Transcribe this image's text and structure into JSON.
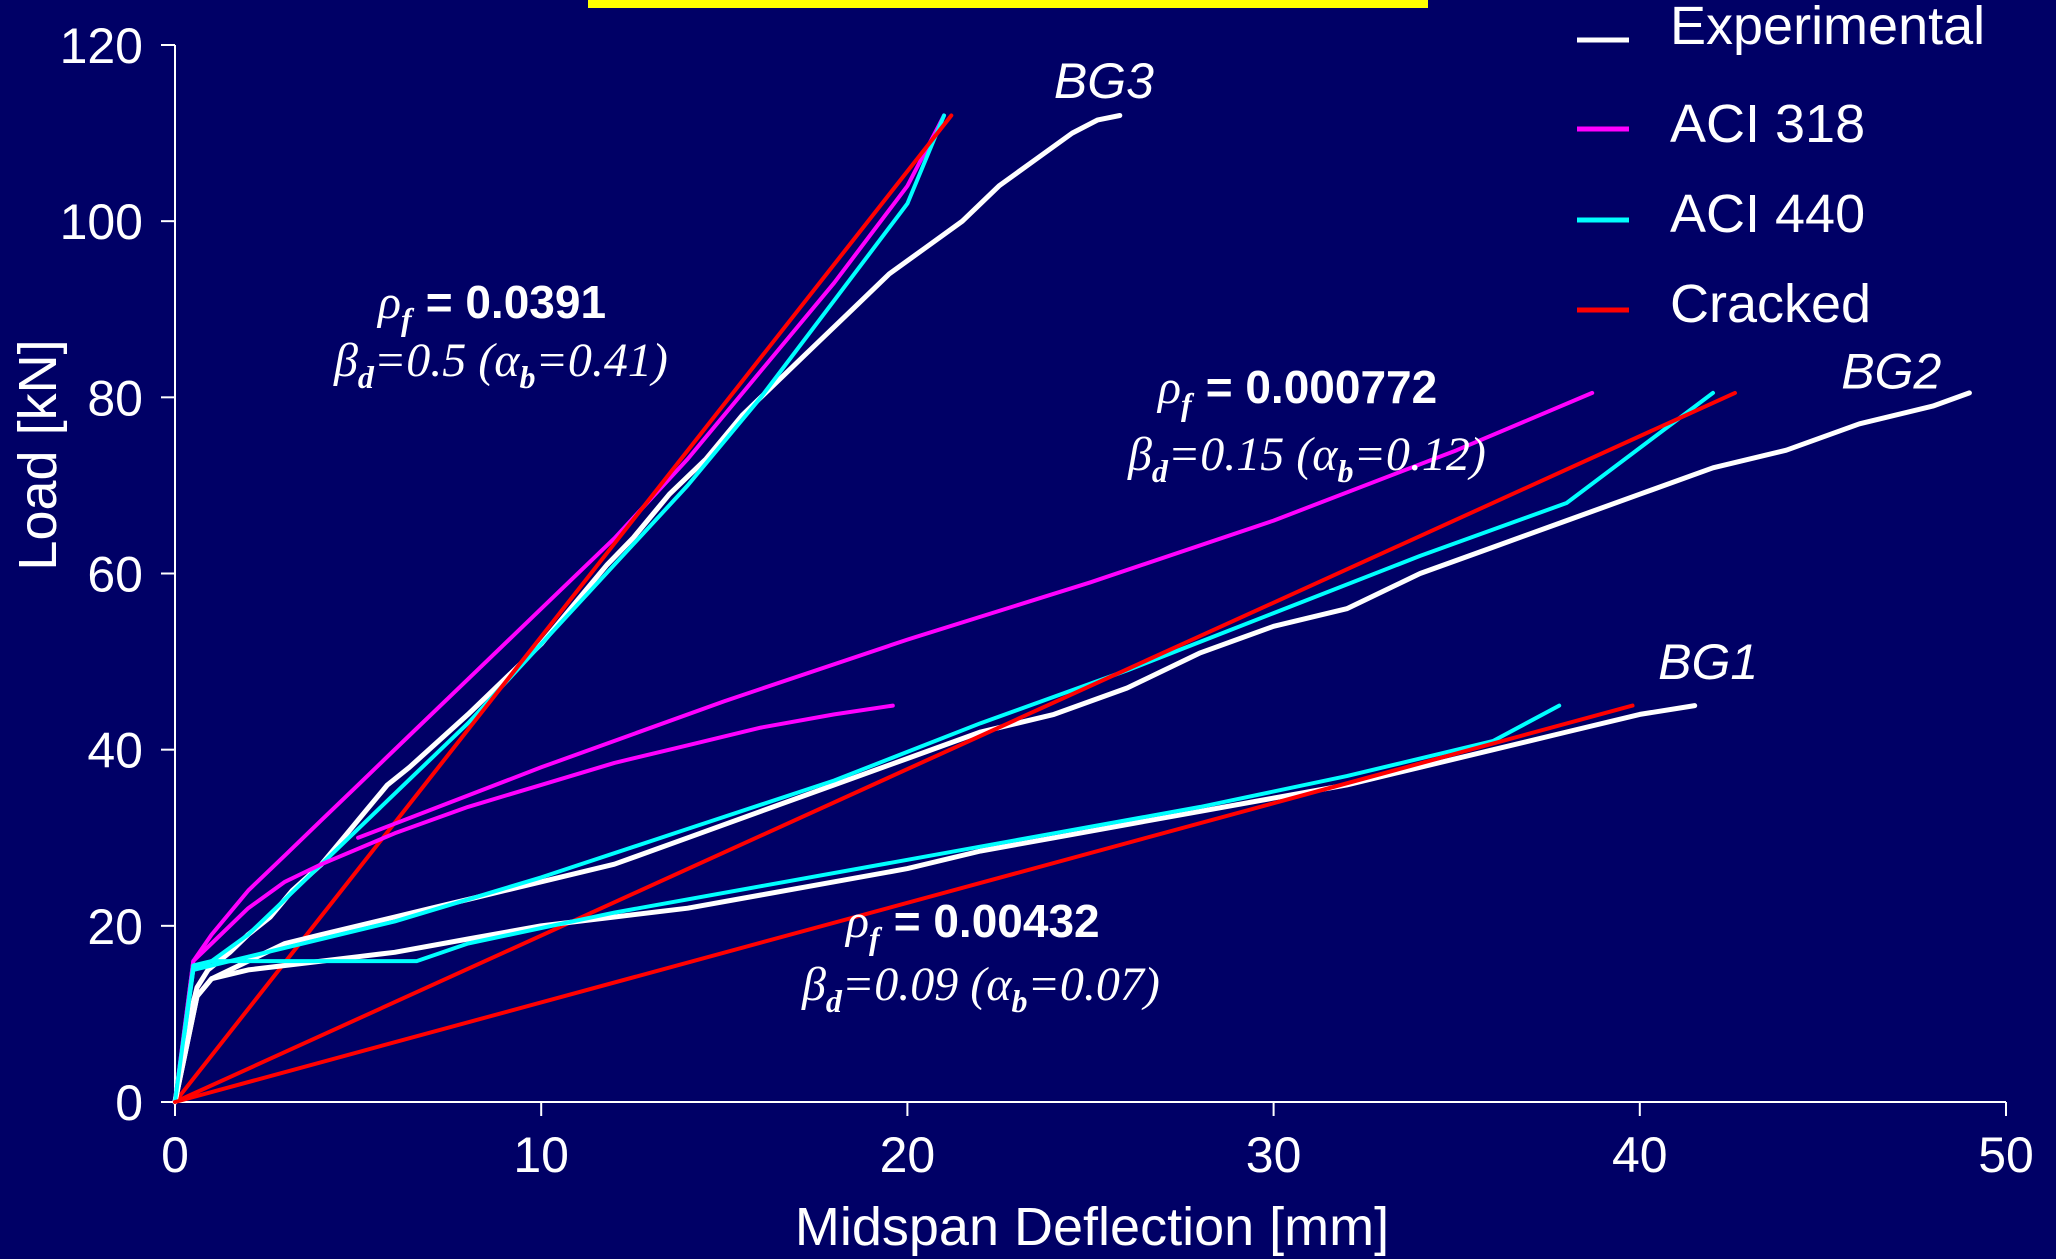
{
  "colors": {
    "background": "#000066",
    "title_bar": "#ffff00",
    "experimental": "#ffffff",
    "aci318": "#ff00ff",
    "aci440": "#00ffff",
    "cracked": "#ff0000"
  },
  "chart_data": {
    "type": "line",
    "xlabel": "Midspan Deflection [mm]",
    "ylabel": "Load [kN]",
    "xlim": [
      0,
      50
    ],
    "ylim": [
      0,
      120
    ],
    "xticks": [
      0,
      10,
      20,
      30,
      40,
      50
    ],
    "yticks": [
      0,
      20,
      40,
      60,
      80,
      100,
      120
    ],
    "grid": false,
    "legend_position": "top-right",
    "legend": [
      {
        "label": "Experimental",
        "color": "#ffffff"
      },
      {
        "label": "ACI 318",
        "color": "#ff00ff"
      },
      {
        "label": "ACI 440",
        "color": "#00ffff"
      },
      {
        "label": "Cracked",
        "color": "#ff0000"
      }
    ],
    "series": [
      {
        "specimen": "BG3",
        "kind": "experimental",
        "color": "#ffffff",
        "x": [
          0,
          0.3,
          0.6,
          0.9,
          1.5,
          2.0,
          2.6,
          3.2,
          4.0,
          4.6,
          5.2,
          5.8,
          6.4,
          7.2,
          8.0,
          9.0,
          10.0,
          11.0,
          11.8,
          12.5,
          13.5,
          14.5,
          15.5,
          16.5,
          17.5,
          18.5,
          19.5,
          20.5,
          21.5,
          22.5,
          23.5,
          24.5,
          25.2,
          25.8
        ],
        "y": [
          0,
          8,
          13,
          15,
          17,
          19,
          21,
          24,
          27,
          30,
          33,
          36,
          38,
          41,
          44,
          48,
          52,
          57,
          61,
          64,
          69,
          73,
          78,
          82,
          86,
          90,
          94,
          97,
          100,
          104,
          107,
          110,
          111.5,
          112
        ]
      },
      {
        "specimen": "BG3",
        "kind": "ACI 318",
        "color": "#ff00ff",
        "x": [
          0,
          0.5,
          1.0,
          2.0,
          3.0,
          4.0,
          5.0,
          6.5,
          8.0,
          10.0,
          12.0,
          14.0,
          16.0,
          18.0,
          20.0,
          21.0
        ],
        "y": [
          0,
          16,
          19,
          24,
          28,
          32,
          36,
          42,
          48,
          56,
          64,
          73,
          83,
          93,
          104,
          112
        ]
      },
      {
        "specimen": "BG3",
        "kind": "ACI 440",
        "color": "#00ffff",
        "x": [
          0,
          0.5,
          1.0,
          2.0,
          3.0,
          4.0,
          5.0,
          6.5,
          8.0,
          10.0,
          12.0,
          14.0,
          16.0,
          18.0,
          20.0,
          21.0
        ],
        "y": [
          0,
          15,
          16,
          19,
          23,
          27,
          31,
          37,
          43,
          52,
          61,
          70,
          80,
          91,
          102,
          112
        ]
      },
      {
        "specimen": "BG3",
        "kind": "Cracked",
        "color": "#ff0000",
        "x": [
          0,
          21.2
        ],
        "y": [
          0,
          112
        ]
      },
      {
        "specimen": "BG2",
        "kind": "experimental",
        "color": "#ffffff",
        "x": [
          0,
          0.3,
          0.6,
          1.0,
          2.0,
          3.0,
          4.0,
          5.0,
          6.0,
          7.0,
          8.0,
          9.0,
          10.0,
          12.0,
          14.0,
          16.0,
          18.0,
          20.0,
          22.0,
          24.0,
          26.0,
          28.0,
          30.0,
          32.0,
          34.0,
          36.0,
          38.0,
          40.0,
          42.0,
          44.0,
          46.0,
          48.0,
          49.0
        ],
        "y": [
          0,
          6,
          12,
          14,
          16,
          18,
          19,
          20,
          21,
          22,
          23,
          24,
          25,
          27,
          30,
          33,
          36,
          39,
          42,
          44,
          47,
          51,
          54,
          56,
          60,
          63,
          66,
          69,
          72,
          74,
          77,
          79,
          80.5
        ]
      },
      {
        "specimen": "BG2",
        "kind": "ACI 318",
        "color": "#ff00ff",
        "x": [
          0,
          0.5,
          1.0,
          2.0,
          3.0,
          4.0,
          6.0,
          8.0,
          10.0,
          12.0,
          14.0,
          16.0,
          18.0,
          19.6
        ],
        "y": [
          0,
          16,
          18,
          22,
          25,
          27,
          30.5,
          33.5,
          36,
          38.5,
          40.5,
          42.5,
          44,
          45
        ]
      },
      {
        "specimen": "BG2",
        "kind": "ACI 318 (second branch)",
        "color": "#ff00ff",
        "x": [
          5.0,
          10.0,
          15.0,
          20.0,
          25.0,
          30.0,
          35.0,
          38.7
        ],
        "y": [
          30,
          38,
          45.5,
          52.5,
          59,
          66,
          74,
          80.5
        ]
      },
      {
        "specimen": "BG2",
        "kind": "ACI 440",
        "color": "#00ffff",
        "x": [
          0,
          0.5,
          1.0,
          2.0,
          4.0,
          6.0,
          8.0,
          10.0,
          14.0,
          18.0,
          22.0,
          26.0,
          30.0,
          34.0,
          38.0,
          42.0
        ],
        "y": [
          0,
          15,
          15.5,
          16.5,
          18.5,
          20.5,
          23,
          25.5,
          31,
          36.5,
          43,
          49,
          55.5,
          62,
          68,
          80.5
        ]
      },
      {
        "specimen": "BG2",
        "kind": "Cracked",
        "color": "#ff0000",
        "x": [
          0,
          42.6
        ],
        "y": [
          0,
          80.5
        ]
      },
      {
        "specimen": "BG1",
        "kind": "experimental",
        "color": "#ffffff",
        "x": [
          0,
          0.3,
          0.6,
          1.0,
          2.0,
          3.0,
          4.0,
          5.0,
          6.0,
          8.0,
          10.0,
          12.0,
          14.0,
          16.0,
          18.0,
          20.0,
          22.0,
          24.0,
          26.0,
          28.0,
          30.0,
          32.0,
          34.0,
          36.0,
          38.0,
          40.0,
          41.5
        ],
        "y": [
          0,
          6,
          12,
          14,
          15,
          15.5,
          16,
          16.5,
          17,
          18.5,
          20,
          21,
          22,
          23.5,
          25,
          26.5,
          28.5,
          30,
          31.5,
          33,
          34.5,
          36,
          38,
          40,
          42,
          44,
          45
        ]
      },
      {
        "specimen": "BG1",
        "kind": "ACI 440",
        "color": "#00ffff",
        "x": [
          0,
          0.5,
          1.0,
          3.0,
          5.0,
          6.6,
          8.0,
          12.0,
          16.0,
          20.0,
          24.0,
          28.0,
          32.0,
          36.0,
          37.8
        ],
        "y": [
          0,
          15.5,
          16,
          16,
          16,
          16,
          18,
          21.5,
          24.5,
          27.5,
          30.5,
          33.5,
          37,
          41,
          45
        ]
      },
      {
        "specimen": "BG1",
        "kind": "Cracked",
        "color": "#ff0000",
        "x": [
          0,
          39.8
        ],
        "y": [
          0,
          45
        ]
      }
    ],
    "specimen_labels": [
      {
        "text": "BG3",
        "x": 24.0,
        "y": 114
      },
      {
        "text": "BG2",
        "x": 45.5,
        "y": 81
      },
      {
        "text": "BG1",
        "x": 40.5,
        "y": 48
      }
    ]
  },
  "annotations": {
    "bg3": {
      "rho_symbol": "ρ",
      "rho_sub": "f",
      "rho_value": "= 0.0391",
      "beta_symbol": "β",
      "beta_sub": "d",
      "beta_value": "=0.5 (",
      "alpha_symbol": "α",
      "alpha_sub": "b",
      "alpha_value": "=0.41)"
    },
    "bg2": {
      "rho_symbol": "ρ",
      "rho_sub": "f",
      "rho_value": "= 0.000772",
      "beta_symbol": "β",
      "beta_sub": "d",
      "beta_value": "=0.15 (",
      "alpha_symbol": "α",
      "alpha_sub": "b",
      "alpha_value": "=0.12)"
    },
    "bg1": {
      "rho_symbol": "ρ",
      "rho_sub": "f",
      "rho_value": "= 0.00432",
      "beta_symbol": "β",
      "beta_sub": "d",
      "beta_value": "=0.09 (",
      "alpha_symbol": "α",
      "alpha_sub": "b",
      "alpha_value": "=0.07)"
    }
  }
}
